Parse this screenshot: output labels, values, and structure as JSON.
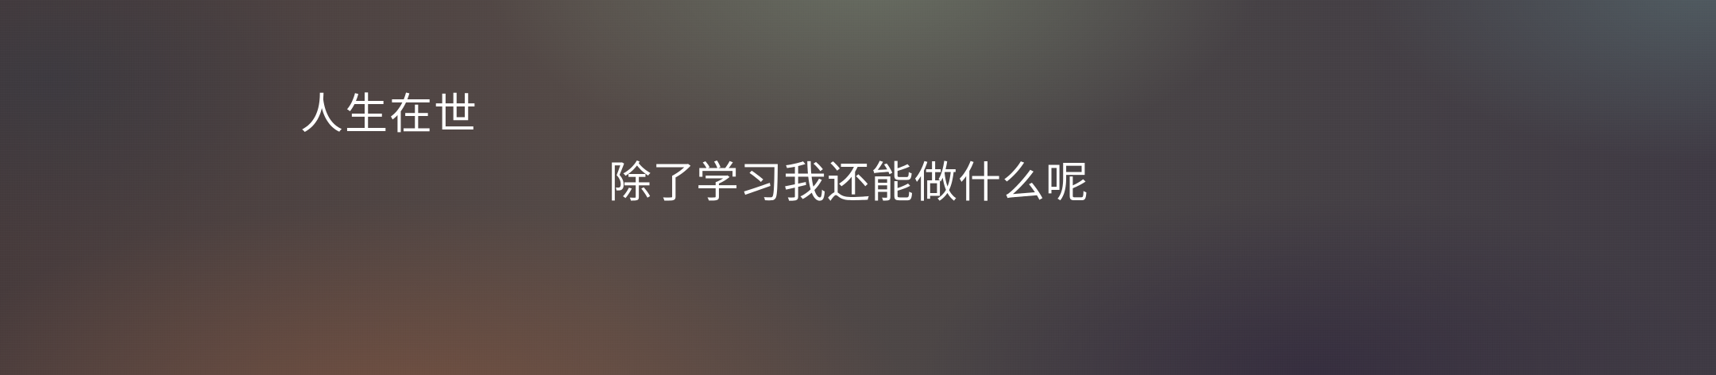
{
  "banner": {
    "line_one": "人生在世",
    "line_two": "除了学习我还能做什么呢"
  },
  "colors": {
    "text": "#ffffff",
    "background_warm": "#785240",
    "background_cool": "#342c3e"
  }
}
